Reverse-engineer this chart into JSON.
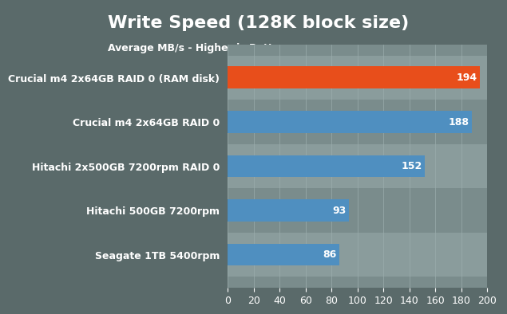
{
  "title": "Write Speed (128K block size)",
  "subtitle": "Average MB/s - Higher is Better",
  "categories": [
    "Seagate 1TB 5400rpm",
    "Hitachi 500GB 7200rpm",
    "Hitachi 2x500GB 7200rpm RAID 0",
    "Crucial m4 2x64GB RAID 0",
    "Crucial m4 2x64GB RAID 0 (RAM disk)"
  ],
  "values": [
    86,
    93,
    152,
    188,
    194
  ],
  "bar_colors": [
    "#4f8fc0",
    "#4f8fc0",
    "#4f8fc0",
    "#4f8fc0",
    "#e84e1b"
  ],
  "bar_colors_gradient_end": [
    "#7ab8d9",
    "#7ab8d9",
    "#7ab8d9",
    "#7ab8d9",
    "#f47a50"
  ],
  "value_labels": [
    "86",
    "93",
    "152",
    "188",
    "194"
  ],
  "xlim": [
    0,
    200
  ],
  "xticks": [
    0,
    20,
    40,
    60,
    80,
    100,
    120,
    140,
    160,
    180,
    200
  ],
  "header_bg_color": "#c8a020",
  "plot_bg_color": "#7a8c8c",
  "fig_bg_color": "#5a6a6a",
  "title_color": "#ffffff",
  "subtitle_color": "#ffffff",
  "label_color": "#ffffff",
  "value_label_color": "#ffffff",
  "tick_label_color": "#ffffff",
  "title_fontsize": 16,
  "subtitle_fontsize": 9,
  "bar_label_fontsize": 9,
  "value_label_fontsize": 9,
  "tick_fontsize": 9,
  "bar_height": 0.5
}
